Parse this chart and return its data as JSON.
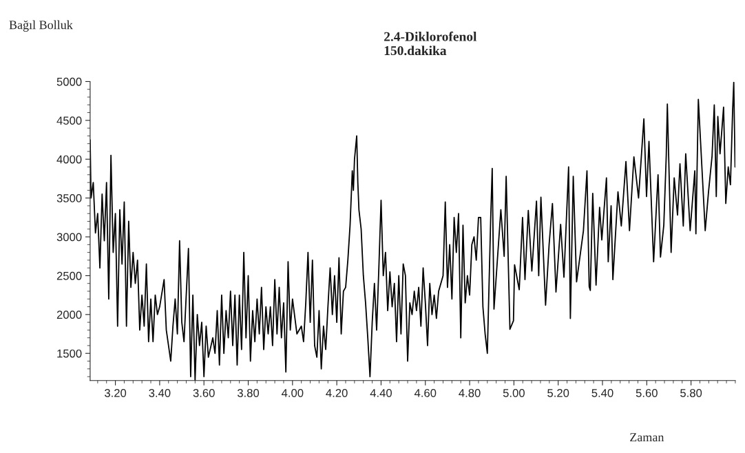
{
  "chart_data": {
    "type": "line",
    "title": "2.4-Diklorofenol\n150.dakika",
    "ylabel": "Bağıl Bolluk",
    "xlabel": "Zaman",
    "grid": false,
    "legend": false,
    "xlim": [
      3.086,
      6.0
    ],
    "xticks": [
      {
        "value": 3.2,
        "label": "3.20"
      },
      {
        "value": 3.4,
        "label": "3.40"
      },
      {
        "value": 3.6,
        "label": "3.60"
      },
      {
        "value": 3.8,
        "label": "3.80"
      },
      {
        "value": 4.0,
        "label": "4.00"
      },
      {
        "value": 4.2,
        "label": "4.20"
      },
      {
        "value": 4.4,
        "label": "4.40"
      },
      {
        "value": 4.6,
        "label": "4.60"
      },
      {
        "value": 4.8,
        "label": "4.80"
      },
      {
        "value": 5.0,
        "label": "5.00"
      },
      {
        "value": 5.2,
        "label": "5.20"
      },
      {
        "value": 5.4,
        "label": "5.40"
      },
      {
        "value": 5.6,
        "label": "5.60"
      },
      {
        "value": 5.8,
        "label": "5.80"
      }
    ],
    "ylim": [
      1150,
      5000
    ],
    "yticks": [
      1500,
      2000,
      2500,
      3000,
      3500,
      4000,
      4500,
      5000
    ],
    "series": [
      {
        "color": "#000000",
        "x": [
          3.086,
          3.09,
          3.1,
          3.11,
          3.12,
          3.13,
          3.14,
          3.15,
          3.16,
          3.17,
          3.18,
          3.19,
          3.2,
          3.21,
          3.22,
          3.23,
          3.24,
          3.25,
          3.26,
          3.27,
          3.28,
          3.29,
          3.3,
          3.31,
          3.32,
          3.33,
          3.34,
          3.35,
          3.36,
          3.37,
          3.38,
          3.39,
          3.4,
          3.42,
          3.43,
          3.45,
          3.46,
          3.47,
          3.48,
          3.49,
          3.5,
          3.51,
          3.53,
          3.54,
          3.55,
          3.56,
          3.57,
          3.58,
          3.59,
          3.6,
          3.61,
          3.62,
          3.64,
          3.65,
          3.66,
          3.67,
          3.68,
          3.69,
          3.7,
          3.71,
          3.72,
          3.73,
          3.74,
          3.75,
          3.76,
          3.77,
          3.78,
          3.79,
          3.8,
          3.81,
          3.82,
          3.83,
          3.84,
          3.85,
          3.86,
          3.87,
          3.88,
          3.89,
          3.9,
          3.91,
          3.92,
          3.93,
          3.94,
          3.95,
          3.96,
          3.97,
          3.98,
          3.99,
          4.0,
          4.02,
          4.04,
          4.05,
          4.06,
          4.07,
          4.08,
          4.09,
          4.1,
          4.11,
          4.12,
          4.13,
          4.14,
          4.15,
          4.16,
          4.17,
          4.18,
          4.19,
          4.2,
          4.21,
          4.22,
          4.23,
          4.24,
          4.25,
          4.26,
          4.27,
          4.275,
          4.28,
          4.29,
          4.295,
          4.3,
          4.31,
          4.32,
          4.33,
          4.34,
          4.35,
          4.36,
          4.37,
          4.38,
          4.39,
          4.4,
          4.41,
          4.42,
          4.43,
          4.44,
          4.45,
          4.46,
          4.47,
          4.48,
          4.49,
          4.5,
          4.51,
          4.52,
          4.53,
          4.54,
          4.55,
          4.56,
          4.57,
          4.58,
          4.59,
          4.6,
          4.61,
          4.62,
          4.63,
          4.64,
          4.65,
          4.66,
          4.68,
          4.69,
          4.7,
          4.71,
          4.72,
          4.73,
          4.74,
          4.75,
          4.76,
          4.77,
          4.78,
          4.79,
          4.8,
          4.81,
          4.82,
          4.83,
          4.84,
          4.85,
          4.86,
          4.87,
          4.88,
          4.895,
          4.902,
          4.91,
          4.941,
          4.956,
          4.965,
          4.982,
          4.998,
          5.003,
          5.024,
          5.039,
          5.05,
          5.065,
          5.081,
          5.102,
          5.112,
          5.122,
          5.143,
          5.159,
          5.174,
          5.19,
          5.211,
          5.226,
          5.247,
          5.255,
          5.268,
          5.283,
          5.314,
          5.33,
          5.34,
          5.345,
          5.356,
          5.371,
          5.387,
          5.397,
          5.418,
          5.426,
          5.439,
          5.447,
          5.47,
          5.485,
          5.506,
          5.522,
          5.542,
          5.563,
          5.587,
          5.599,
          5.61,
          5.631,
          5.651,
          5.662,
          5.677,
          5.688,
          5.693,
          5.71,
          5.724,
          5.739,
          5.75,
          5.765,
          5.776,
          5.796,
          5.817,
          5.822,
          5.833,
          5.854,
          5.864,
          5.879,
          5.895,
          5.905,
          5.914,
          5.921,
          5.931,
          5.947,
          5.957,
          5.968,
          5.978,
          5.988,
          5.993,
          5.999
        ],
        "values": [
          4250,
          3500,
          3700,
          3050,
          3300,
          2600,
          3550,
          2950,
          3700,
          2200,
          4050,
          2800,
          3300,
          1850,
          3350,
          2650,
          3450,
          1850,
          3200,
          2350,
          2800,
          2400,
          2700,
          1800,
          2250,
          1850,
          2650,
          1650,
          2200,
          1650,
          2250,
          2000,
          2100,
          2450,
          1800,
          1400,
          1850,
          2200,
          1750,
          2950,
          1900,
          1650,
          2850,
          1200,
          2250,
          1150,
          2000,
          1600,
          1900,
          1200,
          1850,
          1450,
          1700,
          1500,
          2050,
          1350,
          2250,
          1500,
          2050,
          1700,
          2300,
          1600,
          2250,
          1350,
          2250,
          1550,
          2800,
          1700,
          2500,
          1400,
          2050,
          1650,
          2200,
          1750,
          2350,
          1550,
          2100,
          1750,
          2100,
          1600,
          2450,
          1750,
          2350,
          1700,
          2150,
          1260,
          2680,
          1800,
          2200,
          1750,
          1850,
          1650,
          2150,
          2800,
          1900,
          2700,
          1600,
          1450,
          2050,
          1300,
          1850,
          1550,
          2100,
          2600,
          2000,
          2500,
          1900,
          2730,
          1750,
          2300,
          2350,
          2700,
          3150,
          3850,
          3600,
          4000,
          4300,
          3700,
          3350,
          3100,
          2500,
          2150,
          1700,
          1200,
          1900,
          2400,
          1800,
          2600,
          3470,
          2500,
          2800,
          2050,
          2550,
          2100,
          2400,
          1650,
          2500,
          1750,
          2650,
          2500,
          1400,
          2150,
          2000,
          2300,
          2050,
          2350,
          1850,
          2600,
          2150,
          1600,
          2400,
          2000,
          2250,
          1950,
          2300,
          2500,
          3450,
          2350,
          2900,
          2200,
          3250,
          2800,
          3300,
          1700,
          3150,
          2150,
          2500,
          2250,
          2900,
          3000,
          2700,
          3250,
          3250,
          2100,
          1750,
          1500,
          3220,
          3880,
          2070,
          3350,
          2750,
          3780,
          1810,
          1920,
          2640,
          2320,
          3250,
          2450,
          3340,
          2560,
          3460,
          2500,
          3510,
          2120,
          2900,
          3430,
          2290,
          3160,
          2480,
          3900,
          1950,
          3780,
          2420,
          3080,
          3850,
          2360,
          2310,
          3560,
          2380,
          3380,
          2960,
          3760,
          2680,
          3400,
          2450,
          3580,
          3140,
          3970,
          3080,
          4030,
          3500,
          4520,
          3520,
          4230,
          2680,
          3800,
          2740,
          3150,
          4040,
          4710,
          2800,
          3760,
          3280,
          3940,
          3140,
          4070,
          3080,
          3850,
          3040,
          4770,
          3630,
          3080,
          3580,
          4040,
          4700,
          3520,
          4550,
          4070,
          4670,
          3430,
          3900,
          3670,
          4640,
          4990,
          3900
        ]
      }
    ]
  }
}
